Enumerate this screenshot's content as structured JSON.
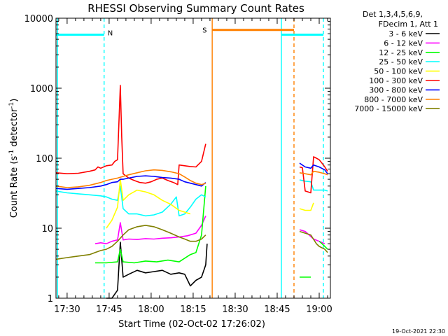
{
  "chart_data": {
    "type": "line",
    "title": "RHESSI Observing Summary Count Rates",
    "xlabel": "Start Time (02-Oct-02 17:26:02)",
    "ylabel_base": "Count Rate (s",
    "ylabel_sup": "-1",
    "ylabel_mid": " detector",
    "ylabel_tail": ")",
    "y_scale": "log",
    "ylim": [
      1,
      10000
    ],
    "xlim": [
      26.03,
      124.0
    ],
    "x_unit": "minutes after 17:00 UT",
    "y_ticks": [
      {
        "value": 1,
        "label": "1"
      },
      {
        "value": 10,
        "label": "10"
      },
      {
        "value": 100,
        "label": "100"
      },
      {
        "value": 1000,
        "label": "1000"
      },
      {
        "value": 10000,
        "label": "10000"
      }
    ],
    "x_ticks": [
      {
        "value": 30,
        "label": "17:30"
      },
      {
        "value": 45,
        "label": "17:45"
      },
      {
        "value": 60,
        "label": "18:00"
      },
      {
        "value": 75,
        "label": "18:15"
      },
      {
        "value": 90,
        "label": "18:30"
      },
      {
        "value": 105,
        "label": "18:45"
      },
      {
        "value": 120,
        "label": "19:00"
      }
    ],
    "legend_header": [
      "Det 1,3,4,5,6,9,",
      "FDecim 1, Att 1"
    ],
    "legend_placement": "right",
    "grid": false,
    "series": [
      {
        "name": "3 - 6 keV",
        "color": "#000000",
        "x": [
          44,
          46,
          48,
          49,
          50,
          52,
          55,
          58,
          61,
          64,
          67,
          70,
          72,
          74,
          76,
          78,
          79.5,
          80
        ],
        "y": [
          1,
          1,
          1.3,
          6.3,
          2.0,
          2.2,
          2.5,
          2.3,
          2.4,
          2.5,
          2.2,
          2.3,
          2.2,
          1.5,
          1.8,
          2.0,
          3.0,
          6.0
        ]
      },
      {
        "name": "6 - 12 keV",
        "color": "#ff00ff",
        "x": [
          40,
          42,
          44,
          46,
          48,
          49,
          50,
          52,
          55,
          58,
          61,
          64,
          67,
          70,
          73,
          76,
          78,
          79.5
        ],
        "y": [
          6.0,
          6.2,
          6.0,
          6.5,
          6.8,
          12.0,
          6.8,
          7.0,
          6.9,
          7.1,
          7.0,
          7.2,
          7.3,
          7.5,
          7.8,
          8.5,
          11.0,
          15.0
        ],
        "x2": [
          113,
          115,
          118,
          120,
          122
        ],
        "y2": [
          9.5,
          9.0,
          7.0,
          6.5,
          6.0
        ]
      },
      {
        "name": "12 - 25 keV",
        "color": "#00ff00",
        "x": [
          40,
          44,
          48,
          49,
          50,
          54,
          58,
          62,
          66,
          70,
          74,
          76,
          78,
          79.5
        ],
        "y": [
          3.2,
          3.2,
          3.3,
          5.0,
          3.3,
          3.2,
          3.4,
          3.3,
          3.5,
          3.3,
          4.2,
          4.5,
          8.0,
          40.0
        ],
        "x2": [
          113,
          114,
          115,
          116,
          117
        ],
        "y2": [
          2.0,
          2.0,
          2.0,
          2.0,
          2.0
        ],
        "x3": [
          120,
          121,
          122,
          123
        ],
        "y3": [
          6.5,
          6.0,
          5.5,
          5.0
        ]
      },
      {
        "name": "25 - 50 keV",
        "color": "#00ffff",
        "x": [
          26,
          30,
          34,
          38,
          42,
          44,
          46,
          48,
          49,
          50,
          52,
          55,
          58,
          61,
          64,
          67,
          69,
          70,
          72,
          74,
          76,
          78,
          79.5
        ],
        "y": [
          34,
          32,
          31,
          30,
          29,
          28,
          26,
          25,
          40,
          19,
          16,
          16,
          15,
          15.5,
          17,
          22,
          28,
          15,
          16,
          20,
          26,
          30,
          28
        ],
        "x2": [
          113,
          115,
          117,
          118,
          120,
          122,
          123
        ],
        "y2": [
          49,
          47,
          46,
          35,
          35,
          35,
          34
        ]
      },
      {
        "name": "50 - 100 keV",
        "color": "#ffff00",
        "x": [
          44,
          46,
          48,
          49,
          50,
          52,
          55,
          58,
          61,
          64,
          67,
          70,
          72,
          74
        ],
        "y": [
          10,
          13,
          20,
          50,
          25,
          30,
          35,
          33,
          30,
          25,
          22,
          18,
          17,
          16
        ],
        "x2": [
          113,
          115,
          117,
          118
        ],
        "y2": [
          19,
          18,
          18,
          23
        ]
      },
      {
        "name": "100 - 300 keV",
        "color": "#ff0000",
        "x": [
          26,
          30,
          34,
          38,
          40,
          41,
          42,
          44,
          46,
          47,
          48,
          49,
          49.5,
          50,
          52,
          54,
          56,
          58,
          60,
          62,
          64,
          66,
          68,
          69.5,
          70,
          72,
          74,
          76,
          78,
          79.5
        ],
        "y": [
          62,
          60,
          61,
          65,
          68,
          75,
          72,
          78,
          80,
          90,
          95,
          1100,
          200,
          60,
          52,
          48,
          45,
          44,
          46,
          50,
          52,
          48,
          45,
          42,
          80,
          78,
          76,
          75,
          90,
          160
        ],
        "x2": [
          113,
          114,
          115,
          116,
          117,
          118,
          119,
          120,
          121,
          122,
          123
        ],
        "y2": [
          75,
          73,
          34,
          33,
          32,
          105,
          100,
          95,
          85,
          75,
          65
        ]
      },
      {
        "name": "300 - 800 keV",
        "color": "#0000ff",
        "x": [
          26,
          30,
          34,
          38,
          42,
          44,
          46,
          48,
          49,
          50,
          52,
          55,
          58,
          61,
          64,
          67,
          70,
          72,
          74,
          76,
          78,
          79.5
        ],
        "y": [
          37,
          36,
          37,
          38,
          40,
          42,
          45,
          46,
          50,
          50,
          52,
          55,
          56,
          55,
          53,
          52,
          50,
          46,
          44,
          42,
          40,
          45
        ],
        "x2": [
          113,
          115,
          117,
          118,
          120,
          122,
          123
        ],
        "y2": [
          85,
          75,
          72,
          80,
          75,
          68,
          60
        ]
      },
      {
        "name": "800 - 7000 keV",
        "color": "#ff8000",
        "x": [
          26,
          30,
          34,
          38,
          42,
          44,
          46,
          48,
          50,
          52,
          55,
          58,
          61,
          64,
          67,
          70,
          72,
          74,
          76,
          78,
          79.5
        ],
        "y": [
          40,
          38,
          39,
          41,
          45,
          48,
          50,
          52,
          55,
          58,
          62,
          66,
          68,
          67,
          64,
          60,
          54,
          48,
          44,
          42,
          44
        ],
        "x2": [
          113,
          115,
          117,
          118,
          120,
          122,
          123
        ],
        "y2": [
          62,
          60,
          58,
          65,
          63,
          60,
          58
        ]
      },
      {
        "name": "7000 - 15000 keV",
        "color": "#808000",
        "x": [
          26,
          30,
          34,
          38,
          40,
          42,
          44,
          46,
          48,
          50,
          52,
          55,
          58,
          61,
          64,
          67,
          70,
          72,
          74,
          76,
          78,
          79.5
        ],
        "y": [
          3.6,
          3.8,
          4.0,
          4.2,
          4.5,
          4.8,
          5.0,
          5.5,
          6.5,
          8.0,
          9.5,
          10.5,
          11,
          10.5,
          9.5,
          8.5,
          7.5,
          7.0,
          6.5,
          6.5,
          7.0,
          8.0
        ],
        "x2": [
          113,
          115,
          117,
          119,
          120,
          122,
          123
        ],
        "y2": [
          9.0,
          8.5,
          8.0,
          6.0,
          5.5,
          5.0,
          4.5
        ]
      }
    ],
    "annotations": {
      "night_bars": [
        {
          "x_start": 26.03,
          "x_end": 43.2,
          "y": 5800,
          "label": "N",
          "color": "#00ffff"
        },
        {
          "x_start": 106.5,
          "x_end": 121.5,
          "y": 5800,
          "label": "",
          "color": "#00ffff"
        }
      ],
      "saa_bar": {
        "x_start": 81.8,
        "x_end": 111.0,
        "y": 6800,
        "label": "S",
        "color": "#ff8000"
      },
      "vertical_lines": [
        {
          "x": 26.6,
          "color": "#00ffff",
          "dashed": false
        },
        {
          "x": 43.2,
          "color": "#00ffff",
          "dashed": true
        },
        {
          "x": 81.8,
          "color": "#ff8000",
          "dashed": false
        },
        {
          "x": 106.5,
          "color": "#00ffff",
          "dashed": false
        },
        {
          "x": 111.0,
          "color": "#ff8000",
          "dashed": true
        },
        {
          "x": 121.5,
          "color": "#00ffff",
          "dashed": true
        }
      ]
    },
    "timestamp": "19-Oct-2021 22:30"
  }
}
